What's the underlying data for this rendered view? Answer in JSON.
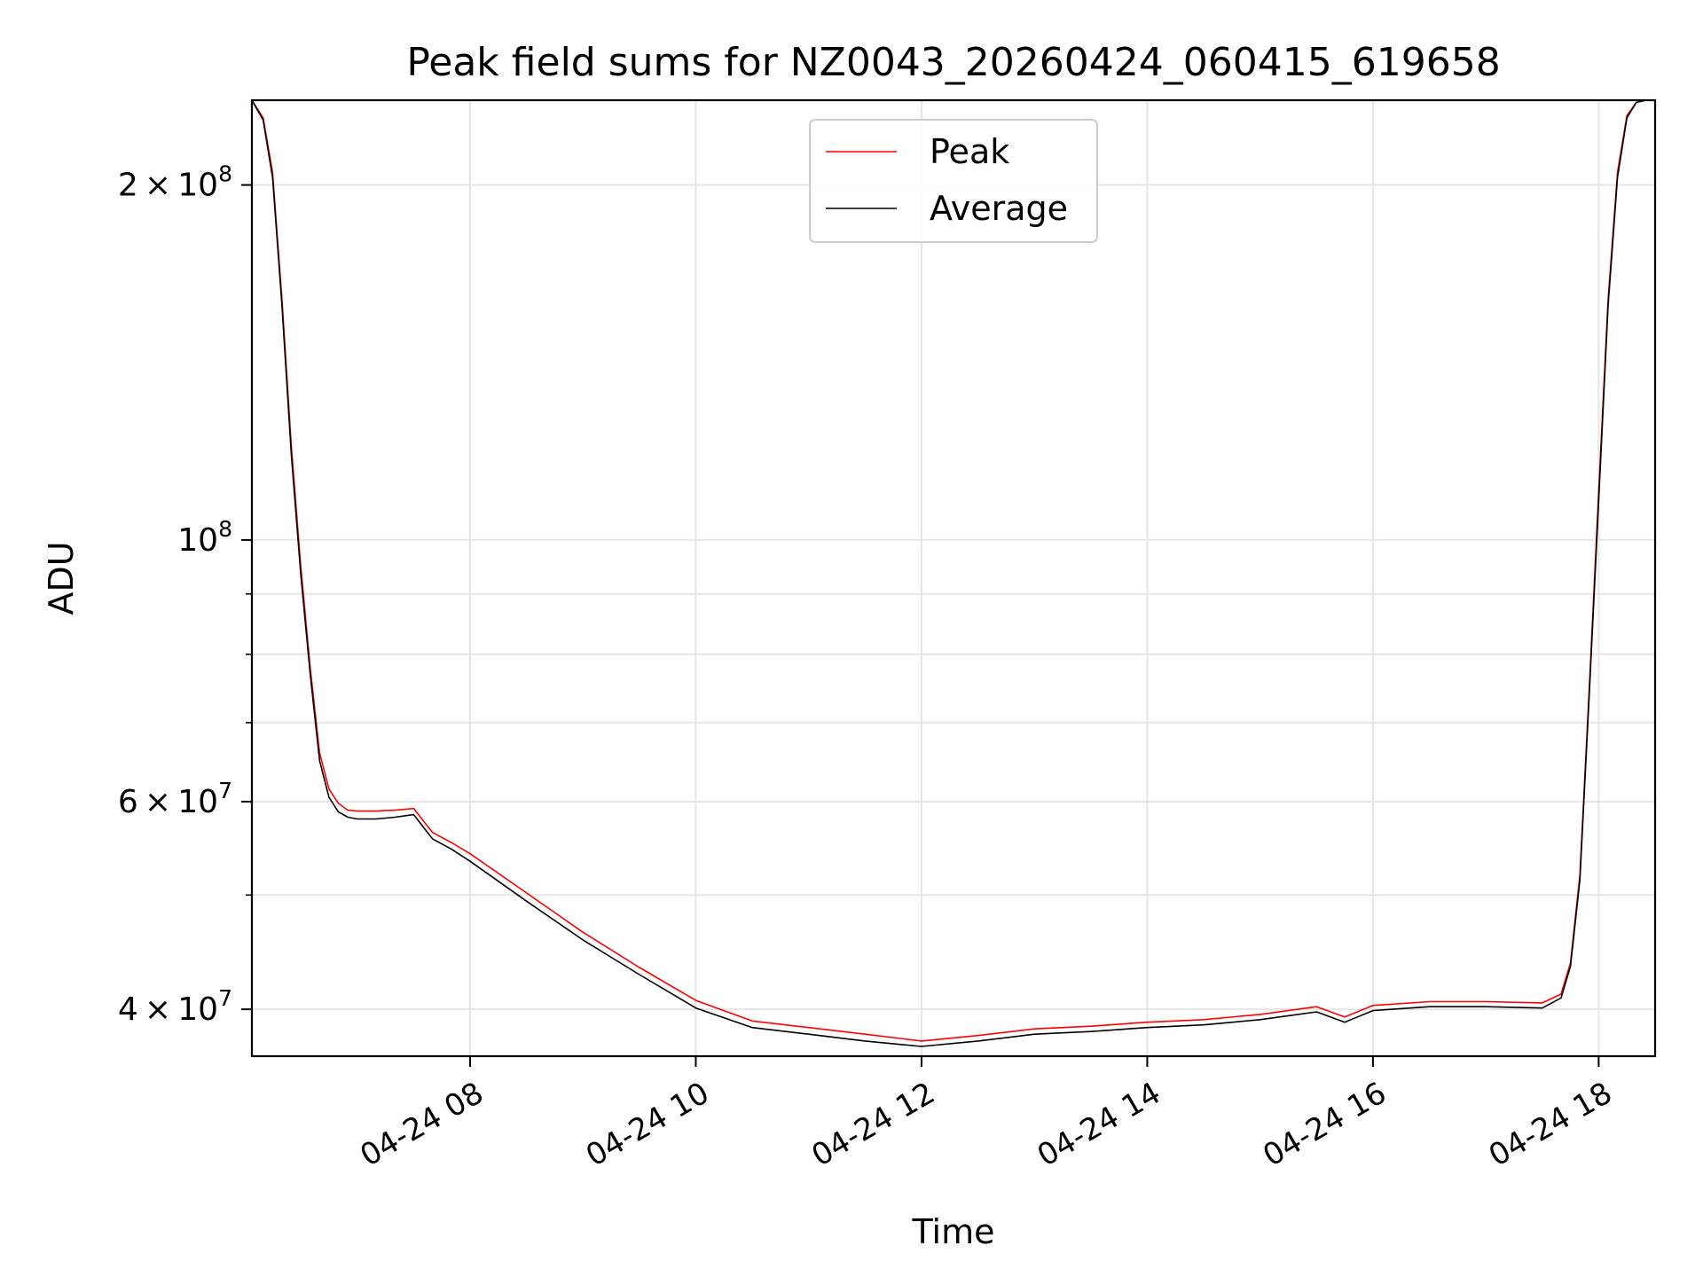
{
  "chart_data": {
    "type": "line",
    "title": "Peak field sums for NZ0043_20260424_060415_619658",
    "xlabel": "Time",
    "ylabel": "ADU",
    "yscale": "log",
    "xlim": [
      "2026-04-24 06:04",
      "2026-04-24 18:30"
    ],
    "ylim": [
      36500000,
      236000000
    ],
    "grid": true,
    "legend_position": "top-center",
    "x_ticks": [
      {
        "value": "2026-04-24 08:00",
        "label": "04-24 08"
      },
      {
        "value": "2026-04-24 10:00",
        "label": "04-24 10"
      },
      {
        "value": "2026-04-24 12:00",
        "label": "04-24 12"
      },
      {
        "value": "2026-04-24 14:00",
        "label": "04-24 14"
      },
      {
        "value": "2026-04-24 16:00",
        "label": "04-24 16"
      },
      {
        "value": "2026-04-24 18:00",
        "label": "04-24 18"
      }
    ],
    "y_major_ticks": [
      {
        "value": 40000000,
        "mantissa": "4",
        "exponent": "7"
      },
      {
        "value": 60000000,
        "mantissa": "6",
        "exponent": "7"
      },
      {
        "value": 100000000,
        "mantissa": "",
        "exponent": "8"
      },
      {
        "value": 200000000,
        "mantissa": "2",
        "exponent": "8"
      }
    ],
    "y_minor_ticks": [
      50000000,
      70000000,
      80000000,
      90000000
    ],
    "series": [
      {
        "name": "Peak",
        "color": "#ff0000",
        "x": [
          "2026-04-24 06:04",
          "2026-04-24 06:10",
          "2026-04-24 06:15",
          "2026-04-24 06:20",
          "2026-04-24 06:25",
          "2026-04-24 06:30",
          "2026-04-24 06:35",
          "2026-04-24 06:40",
          "2026-04-24 06:45",
          "2026-04-24 06:50",
          "2026-04-24 06:55",
          "2026-04-24 07:00",
          "2026-04-24 07:10",
          "2026-04-24 07:20",
          "2026-04-24 07:30",
          "2026-04-24 07:40",
          "2026-04-24 07:50",
          "2026-04-24 08:00",
          "2026-04-24 08:30",
          "2026-04-24 09:00",
          "2026-04-24 09:30",
          "2026-04-24 10:00",
          "2026-04-24 10:30",
          "2026-04-24 11:00",
          "2026-04-24 11:30",
          "2026-04-24 12:00",
          "2026-04-24 12:30",
          "2026-04-24 13:00",
          "2026-04-24 13:30",
          "2026-04-24 14:00",
          "2026-04-24 14:30",
          "2026-04-24 15:00",
          "2026-04-24 15:30",
          "2026-04-24 15:45",
          "2026-04-24 16:00",
          "2026-04-24 16:30",
          "2026-04-24 17:00",
          "2026-04-24 17:30",
          "2026-04-24 17:40",
          "2026-04-24 17:45",
          "2026-04-24 17:50",
          "2026-04-24 17:55",
          "2026-04-24 18:00",
          "2026-04-24 18:05",
          "2026-04-24 18:10",
          "2026-04-24 18:15",
          "2026-04-24 18:20",
          "2026-04-24 18:25",
          "2026-04-24 18:30"
        ],
        "y": [
          236000000,
          228000000,
          205000000,
          160000000,
          120000000,
          95000000,
          78000000,
          66000000,
          61500000,
          59800000,
          59000000,
          58900000,
          58900000,
          59000000,
          59200000,
          56500000,
          55400000,
          54200000,
          50200000,
          46500000,
          43400000,
          40700000,
          39100000,
          38600000,
          38100000,
          37600000,
          38000000,
          38500000,
          38700000,
          39000000,
          39200000,
          39600000,
          40200000,
          39400000,
          40300000,
          40600000,
          40600000,
          40500000,
          41200000,
          43800000,
          52000000,
          75000000,
          110000000,
          160000000,
          205000000,
          229000000,
          235000000,
          236000000,
          236000000
        ]
      },
      {
        "name": "Average",
        "color": "#000000",
        "x": [
          "2026-04-24 06:04",
          "2026-04-24 06:10",
          "2026-04-24 06:15",
          "2026-04-24 06:20",
          "2026-04-24 06:25",
          "2026-04-24 06:30",
          "2026-04-24 06:35",
          "2026-04-24 06:40",
          "2026-04-24 06:45",
          "2026-04-24 06:50",
          "2026-04-24 06:55",
          "2026-04-24 07:00",
          "2026-04-24 07:10",
          "2026-04-24 07:20",
          "2026-04-24 07:30",
          "2026-04-24 07:40",
          "2026-04-24 07:50",
          "2026-04-24 08:00",
          "2026-04-24 08:30",
          "2026-04-24 09:00",
          "2026-04-24 09:30",
          "2026-04-24 10:00",
          "2026-04-24 10:30",
          "2026-04-24 11:00",
          "2026-04-24 11:30",
          "2026-04-24 12:00",
          "2026-04-24 12:30",
          "2026-04-24 13:00",
          "2026-04-24 13:30",
          "2026-04-24 14:00",
          "2026-04-24 14:30",
          "2026-04-24 15:00",
          "2026-04-24 15:30",
          "2026-04-24 15:45",
          "2026-04-24 16:00",
          "2026-04-24 16:30",
          "2026-04-24 17:00",
          "2026-04-24 17:30",
          "2026-04-24 17:40",
          "2026-04-24 17:45",
          "2026-04-24 17:50",
          "2026-04-24 17:55",
          "2026-04-24 18:00",
          "2026-04-24 18:05",
          "2026-04-24 18:10",
          "2026-04-24 18:15",
          "2026-04-24 18:20",
          "2026-04-24 18:25",
          "2026-04-24 18:30"
        ],
        "y": [
          236000000,
          227000000,
          203000000,
          158000000,
          118000000,
          93500000,
          77000000,
          65000000,
          60500000,
          58800000,
          58200000,
          58000000,
          58000000,
          58200000,
          58500000,
          55800000,
          54700000,
          53400000,
          49400000,
          45800000,
          42800000,
          40100000,
          38600000,
          38100000,
          37600000,
          37200000,
          37600000,
          38100000,
          38300000,
          38600000,
          38800000,
          39200000,
          39800000,
          39000000,
          39900000,
          40200000,
          40200000,
          40100000,
          40900000,
          43500000,
          51500000,
          74000000,
          108000000,
          158000000,
          203000000,
          228000000,
          235000000,
          236000000,
          236000000
        ]
      }
    ]
  }
}
